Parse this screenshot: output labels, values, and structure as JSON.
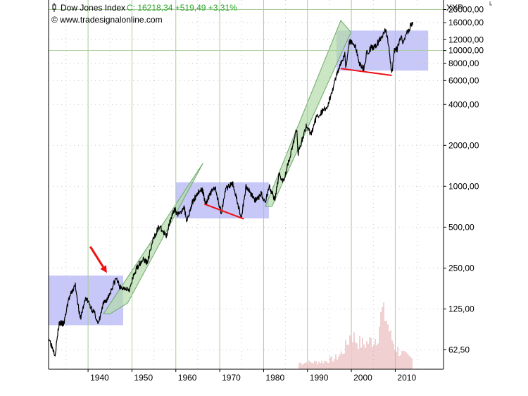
{
  "header": {
    "instrument": "Dow Jones Index",
    "quote": "C: 16218,34 +519,49 +3,31%",
    "source": "© www.tradesignalonline.com",
    "currency": "XXP"
  },
  "colors": {
    "price": "#000000",
    "quote": "#2aa52a",
    "gridline_major": "#a8cc98",
    "grid_dots": "#c8c8c8",
    "channel_fill": "#b4dcaa",
    "channel_stroke": "#6aa86a",
    "range_fill": "#b4b4f5",
    "support_line": "#ee1010",
    "arrow": "#ee1010",
    "volume": "#e0a0a0"
  },
  "chart_data": {
    "type": "line",
    "title": "Dow Jones Index",
    "yscale": "log",
    "xlim": [
      1931,
      2021
    ],
    "ylim": [
      45,
      23500
    ],
    "x_ticks": [
      1940,
      1950,
      1960,
      1970,
      1980,
      1990,
      2000,
      2010
    ],
    "x_tick_labels": [
      "1940",
      "1950",
      "1960",
      "1970",
      "1980",
      "1990",
      "2000",
      "2010"
    ],
    "y_ticks": [
      62.5,
      125,
      250,
      500,
      1000,
      2000,
      4000,
      6000,
      8000,
      10000,
      12000,
      16000,
      20000
    ],
    "y_tick_labels": [
      "62,50",
      "125,00",
      "250,00",
      "500,00",
      "1000,00",
      "2000,00",
      "4000,00",
      "6000,00",
      "8000,00",
      "10000,00",
      "12000,00",
      "16000,00",
      "20000,00"
    ],
    "series": [
      {
        "points": [
          [
            1931.0,
            77
          ],
          [
            1932.5,
            58
          ],
          [
            1933.4,
            98
          ],
          [
            1934.5,
            97
          ],
          [
            1935.5,
            145
          ],
          [
            1937.1,
            188
          ],
          [
            1938.2,
            105
          ],
          [
            1939.5,
            152
          ],
          [
            1940.5,
            131
          ],
          [
            1941.7,
            112
          ],
          [
            1942.3,
            95
          ],
          [
            1943.5,
            136
          ],
          [
            1944.5,
            150
          ],
          [
            1945.8,
            190
          ],
          [
            1946.4,
            210
          ],
          [
            1947.5,
            175
          ],
          [
            1948.5,
            180
          ],
          [
            1949.5,
            175
          ],
          [
            1950.5,
            225
          ],
          [
            1951.5,
            265
          ],
          [
            1952.5,
            290
          ],
          [
            1953.5,
            275
          ],
          [
            1954.8,
            400
          ],
          [
            1955.8,
            480
          ],
          [
            1956.3,
            505
          ],
          [
            1957.8,
            425
          ],
          [
            1958.8,
            580
          ],
          [
            1959.8,
            670
          ],
          [
            1960.8,
            610
          ],
          [
            1961.8,
            720
          ],
          [
            1962.5,
            560
          ],
          [
            1963.8,
            760
          ],
          [
            1965.0,
            900
          ],
          [
            1966.0,
            950
          ],
          [
            1966.8,
            750
          ],
          [
            1968.0,
            900
          ],
          [
            1968.9,
            985
          ],
          [
            1970.4,
            630
          ],
          [
            1971.2,
            940
          ],
          [
            1973.0,
            1050
          ],
          [
            1974.9,
            580
          ],
          [
            1976.0,
            1000
          ],
          [
            1977.5,
            850
          ],
          [
            1978.2,
            780
          ],
          [
            1979.5,
            880
          ],
          [
            1980.3,
            760
          ],
          [
            1981.3,
            1000
          ],
          [
            1982.6,
            780
          ],
          [
            1983.5,
            1230
          ],
          [
            1984.5,
            1100
          ],
          [
            1985.5,
            1450
          ],
          [
            1986.5,
            1900
          ],
          [
            1987.6,
            2700
          ],
          [
            1987.8,
            1740
          ],
          [
            1989.0,
            2300
          ],
          [
            1989.8,
            2800
          ],
          [
            1990.8,
            2400
          ],
          [
            1992.0,
            3200
          ],
          [
            1993.5,
            3600
          ],
          [
            1994.5,
            3850
          ],
          [
            1995.5,
            4800
          ],
          [
            1996.5,
            6400
          ],
          [
            1997.6,
            8200
          ],
          [
            1998.5,
            9300
          ],
          [
            1998.7,
            7500
          ],
          [
            1999.5,
            11500
          ],
          [
            2000.1,
            11700
          ],
          [
            2001.0,
            10500
          ],
          [
            2001.7,
            8200
          ],
          [
            2002.8,
            7300
          ],
          [
            2003.5,
            9500
          ],
          [
            2004.5,
            10500
          ],
          [
            2005.5,
            10700
          ],
          [
            2006.5,
            12000
          ],
          [
            2007.8,
            14200
          ],
          [
            2008.5,
            11000
          ],
          [
            2008.9,
            8200
          ],
          [
            2009.2,
            6550
          ],
          [
            2009.8,
            10000
          ],
          [
            2010.5,
            10200
          ],
          [
            2011.3,
            12600
          ],
          [
            2011.8,
            11000
          ],
          [
            2012.5,
            13200
          ],
          [
            2013.2,
            14500
          ],
          [
            2013.6,
            15600
          ],
          [
            2014.0,
            16200
          ]
        ]
      }
    ],
    "volume": [
      [
        1988,
        52
      ],
      [
        1990,
        52.5
      ],
      [
        1992,
        53
      ],
      [
        1994,
        54
      ],
      [
        1996,
        57
      ],
      [
        1997,
        60
      ],
      [
        1998,
        66
      ],
      [
        1999,
        78
      ],
      [
        2000,
        98
      ],
      [
        2001,
        85
      ],
      [
        2002,
        80
      ],
      [
        2003,
        78
      ],
      [
        2004,
        82
      ],
      [
        2005,
        85
      ],
      [
        2006,
        92
      ],
      [
        2007,
        150
      ],
      [
        2008,
        128
      ],
      [
        2009,
        90
      ],
      [
        2010,
        74
      ],
      [
        2011,
        66
      ],
      [
        2012,
        62
      ],
      [
        2013,
        59
      ],
      [
        2014,
        57
      ]
    ],
    "trend_channels": [
      [
        [
          1943.5,
          115
        ],
        [
          1966.2,
          1480
        ],
        [
          1949.0,
          138
        ],
        [
          1945.0,
          115
        ]
      ],
      [
        [
          1980.4,
          710
        ],
        [
          1997.6,
          16600
        ],
        [
          1999.9,
          13600
        ],
        [
          1981.9,
          710
        ]
      ]
    ],
    "sideways_ranges": [
      {
        "x": [
          1931.0,
          1948.0
        ],
        "y": [
          95,
          220
        ]
      },
      {
        "x": [
          1960.0,
          1981.2
        ],
        "y": [
          580,
          1070
        ]
      },
      {
        "x": [
          1996.6,
          2017.5
        ],
        "y": [
          7100,
          14000
        ]
      }
    ],
    "support_lines": [
      [
        [
          1966.5,
          740
        ],
        [
          1975.5,
          575
        ]
      ],
      [
        [
          1997.6,
          7350
        ],
        [
          2009.2,
          6550
        ]
      ]
    ],
    "annotations": [
      {
        "type": "arrow",
        "from": [
          1940.5,
          360
        ],
        "to": [
          1944.3,
          230
        ]
      }
    ]
  }
}
